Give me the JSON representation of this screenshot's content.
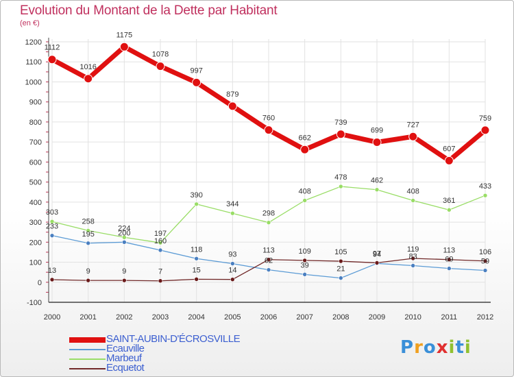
{
  "title": "Evolution du Montant de la Dette par Habitant",
  "subtitle": "(en €)",
  "chart_data": {
    "type": "line",
    "title": "Evolution du Montant de la Dette par Habitant",
    "ylabel": "(en €)",
    "x": [
      "2000",
      "2001",
      "2002",
      "2003",
      "2004",
      "2005",
      "2006",
      "2007",
      "2008",
      "2009",
      "2010",
      "2011",
      "2012"
    ],
    "ylim": [
      -100,
      1200
    ],
    "yticks": [
      -100,
      0,
      100,
      200,
      300,
      400,
      500,
      600,
      700,
      800,
      900,
      1000,
      1100,
      1200
    ],
    "grid": true,
    "legend_position": "bottom-left",
    "series": [
      {
        "name": "SAINT-AUBIN-D'ÉCROSVILLE",
        "color": "#e01010",
        "values": [
          1112,
          1016,
          1175,
          1078,
          997,
          879,
          760,
          662,
          739,
          699,
          727,
          607,
          759
        ]
      },
      {
        "name": "Ecauville",
        "color": "#5b9bd5",
        "values": [
          233,
          195,
          200,
          160,
          118,
          93,
          62,
          39,
          21,
          94,
          83,
          69,
          59
        ]
      },
      {
        "name": "Marbeuf",
        "color": "#99dd66",
        "values": [
          303,
          258,
          224,
          197,
          390,
          344,
          298,
          408,
          478,
          462,
          408,
          361,
          433
        ]
      },
      {
        "name": "Ecquetot",
        "color": "#702828",
        "values": [
          13,
          9,
          9,
          7,
          15,
          14,
          113,
          109,
          105,
          97,
          119,
          113,
          106
        ]
      }
    ]
  },
  "legend": [
    {
      "label": "SAINT-AUBIN-D'ÉCROSVILLE",
      "color": "#e01010"
    },
    {
      "label": "Ecauville",
      "color": "#5b9bd5"
    },
    {
      "label": "Marbeuf",
      "color": "#99dd66"
    },
    {
      "label": "Ecquetot",
      "color": "#702828"
    }
  ],
  "logo": {
    "text": "Proxiti",
    "colors": [
      "#3a8fd8",
      "#f0a020",
      "#3a8fd8",
      "#e03030",
      "#90c030",
      "#3a8fd8",
      "#90c030"
    ]
  }
}
